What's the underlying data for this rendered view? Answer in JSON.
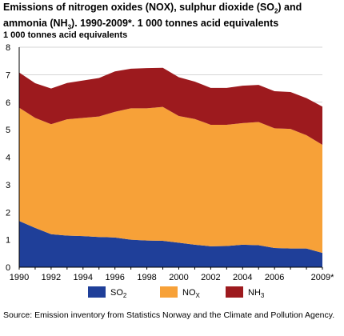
{
  "title_html": "Emissions of nitrogen oxides (NOX), sulphur dioxide (SO<sub>2</sub>) and  ammonia (NH<sub>3</sub>). 1990-2009*. 1 000 tonnes acid equivalents",
  "source": "Source: Emission inventory from Statistics Norway and the Climate and Pollution Agency.",
  "chart_data": {
    "type": "area",
    "stacked": true,
    "title": "Emissions of nitrogen oxides (NOX), sulphur dioxide (SO2) and  ammonia (NH3). 1990-2009*. 1 000 tonnes acid equivalents",
    "ylabel": "1 000 tonnes acid equivalents",
    "xlabel": "",
    "x": [
      1990,
      1991,
      1992,
      1993,
      1994,
      1995,
      1996,
      1997,
      1998,
      1999,
      2000,
      2001,
      2002,
      2003,
      2004,
      2005,
      2006,
      2007,
      2008,
      2009
    ],
    "xtick_labels": [
      "1990",
      "1992",
      "1994",
      "1996",
      "1998",
      "2000",
      "2002",
      "2004",
      "2006",
      "2009*"
    ],
    "xtick_positions": [
      1990,
      1992,
      1994,
      1996,
      1998,
      2000,
      2002,
      2004,
      2006,
      2009
    ],
    "ylim": [
      0,
      8
    ],
    "yticks": [
      0,
      1,
      2,
      3,
      4,
      5,
      6,
      7,
      8
    ],
    "grid": true,
    "legend_position": "bottom",
    "series": [
      {
        "name": "SO2",
        "label_main": "SO",
        "label_sub": "2",
        "color": "#1f3f99",
        "values": [
          1.68,
          1.43,
          1.2,
          1.15,
          1.13,
          1.1,
          1.08,
          1.0,
          0.97,
          0.96,
          0.89,
          0.82,
          0.76,
          0.77,
          0.82,
          0.8,
          0.7,
          0.68,
          0.68,
          0.52
        ]
      },
      {
        "name": "NOX",
        "label_main": "NO",
        "label_sub": "X",
        "color": "#f7a138",
        "values": [
          4.12,
          4.0,
          4.0,
          4.23,
          4.3,
          4.38,
          4.57,
          4.78,
          4.81,
          4.87,
          4.61,
          4.57,
          4.42,
          4.41,
          4.42,
          4.48,
          4.35,
          4.35,
          4.12,
          3.93
        ]
      },
      {
        "name": "NH3",
        "label_main": "NH",
        "label_sub": "3",
        "color": "#9d1a1e",
        "values": [
          1.28,
          1.26,
          1.3,
          1.32,
          1.36,
          1.4,
          1.47,
          1.44,
          1.46,
          1.42,
          1.41,
          1.36,
          1.34,
          1.34,
          1.36,
          1.35,
          1.35,
          1.34,
          1.35,
          1.39
        ]
      }
    ]
  }
}
